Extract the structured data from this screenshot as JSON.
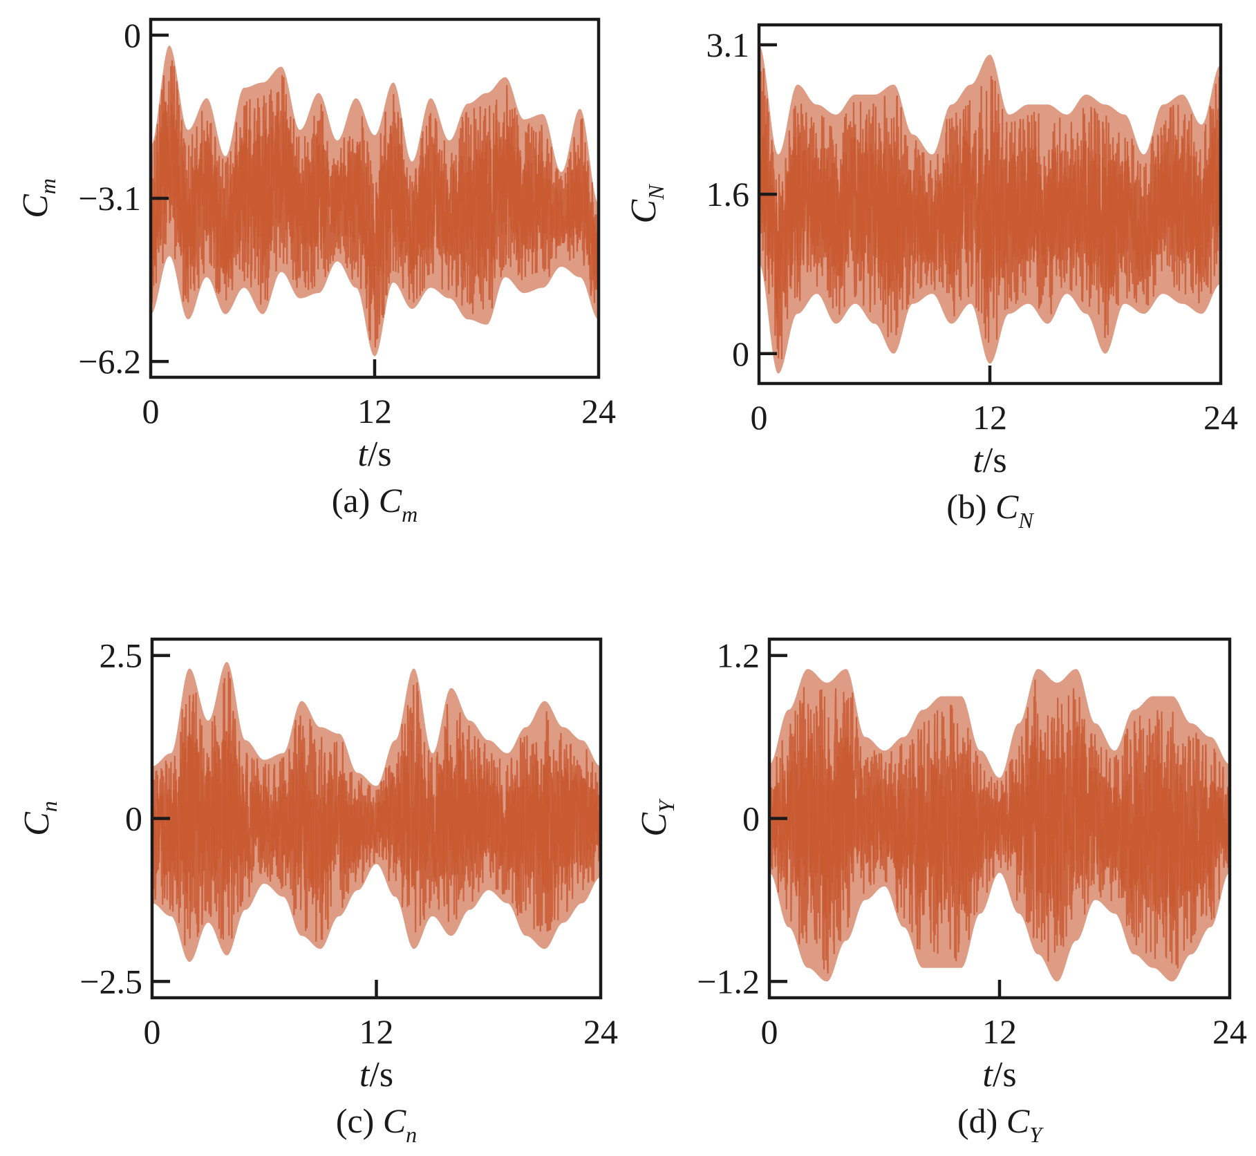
{
  "chart_data": [
    {
      "type": "line",
      "caption": {
        "label": "(a)",
        "symbol": "C",
        "subscript": "m"
      },
      "xlabel": {
        "var": "t",
        "unit": "/s"
      },
      "ylabel": {
        "symbol": "C",
        "subscript": "m"
      },
      "xlim": [
        0,
        24
      ],
      "ylim": [
        -6.5,
        0.3
      ],
      "xticks": [
        0,
        12,
        24
      ],
      "xtick_labels": [
        "0",
        "12",
        "24"
      ],
      "yticks": [
        0,
        -3.1,
        -6.2
      ],
      "ytick_labels": [
        "0",
        "−3.1",
        "−6.2"
      ],
      "grid": false,
      "series": [
        {
          "color": "#c95a32",
          "x": [
            0,
            1,
            2,
            3,
            4,
            5,
            6,
            7,
            8,
            9,
            10,
            11,
            12,
            13,
            14,
            15,
            16,
            17,
            18,
            19,
            20,
            21,
            22,
            23,
            24
          ],
          "y_upper": [
            -2.1,
            -0.2,
            -1.8,
            -1.2,
            -2.3,
            -1.0,
            -0.9,
            -0.6,
            -1.8,
            -1.1,
            -2.0,
            -1.2,
            -1.9,
            -0.9,
            -2.4,
            -1.2,
            -2.0,
            -1.3,
            -1.1,
            -0.8,
            -1.6,
            -1.5,
            -2.6,
            -1.4,
            -3.2
          ],
          "y_lower": [
            -5.3,
            -4.2,
            -5.4,
            -4.6,
            -5.3,
            -4.8,
            -5.3,
            -4.5,
            -5.0,
            -4.9,
            -4.3,
            -4.8,
            -6.1,
            -4.7,
            -5.2,
            -4.8,
            -5.0,
            -5.4,
            -5.5,
            -4.6,
            -4.9,
            -4.8,
            -4.4,
            -4.6,
            -5.4
          ]
        }
      ]
    },
    {
      "type": "line",
      "caption": {
        "label": "(b)",
        "symbol": "C",
        "subscript": "N"
      },
      "xlabel": {
        "var": "t",
        "unit": "/s"
      },
      "ylabel": {
        "symbol": "C",
        "subscript": "N"
      },
      "xlim": [
        0,
        24
      ],
      "ylim": [
        -0.3,
        3.3
      ],
      "xticks": [
        0,
        12,
        24
      ],
      "xtick_labels": [
        "0",
        "12",
        "24"
      ],
      "yticks": [
        3.1,
        1.6,
        0
      ],
      "ytick_labels": [
        "3.1",
        "1.6",
        "0"
      ],
      "grid": false,
      "series": [
        {
          "color": "#c95a32",
          "x": [
            0,
            1,
            2,
            3,
            4,
            5,
            6,
            7,
            8,
            9,
            10,
            11,
            12,
            13,
            14,
            15,
            16,
            17,
            18,
            19,
            20,
            21,
            22,
            23,
            24
          ],
          "y_upper": [
            3.1,
            2.0,
            2.7,
            2.5,
            2.4,
            2.6,
            2.6,
            2.7,
            2.2,
            2.0,
            2.5,
            2.7,
            3.0,
            2.4,
            2.5,
            2.5,
            2.4,
            2.6,
            2.5,
            2.4,
            2.0,
            2.5,
            2.6,
            2.3,
            2.9
          ],
          "y_lower": [
            0.9,
            -0.2,
            0.4,
            0.6,
            0.3,
            0.5,
            0.3,
            0.0,
            0.5,
            0.6,
            0.3,
            0.5,
            -0.1,
            0.4,
            0.5,
            0.3,
            0.6,
            0.4,
            0.0,
            0.5,
            0.4,
            0.6,
            0.5,
            0.4,
            0.7
          ]
        }
      ]
    },
    {
      "type": "line",
      "caption": {
        "label": "(c)",
        "symbol": "C",
        "subscript": "n"
      },
      "xlabel": {
        "var": "t",
        "unit": "/s"
      },
      "ylabel": {
        "symbol": "C",
        "subscript": "n"
      },
      "xlim": [
        0,
        24
      ],
      "ylim": [
        -2.75,
        2.75
      ],
      "xticks": [
        0,
        12,
        24
      ],
      "xtick_labels": [
        "0",
        "12",
        "24"
      ],
      "yticks": [
        2.5,
        0,
        -2.5
      ],
      "ytick_labels": [
        "2.5",
        "0",
        "−2.5"
      ],
      "grid": false,
      "series": [
        {
          "color": "#c95a32",
          "x": [
            0,
            1,
            2,
            3,
            4,
            5,
            6,
            7,
            8,
            9,
            10,
            11,
            12,
            13,
            14,
            15,
            16,
            17,
            18,
            19,
            20,
            21,
            22,
            23,
            24
          ],
          "y_upper": [
            0.8,
            1.0,
            2.3,
            1.5,
            2.4,
            1.2,
            0.9,
            1.0,
            1.8,
            1.4,
            1.3,
            0.7,
            0.5,
            1.2,
            2.3,
            1.0,
            2.0,
            1.5,
            1.2,
            1.0,
            1.4,
            1.8,
            1.4,
            1.2,
            0.8
          ],
          "y_lower": [
            -1.3,
            -1.5,
            -2.2,
            -1.6,
            -2.1,
            -1.4,
            -1.0,
            -1.2,
            -1.8,
            -2.0,
            -1.5,
            -1.1,
            -0.7,
            -1.2,
            -2.0,
            -1.5,
            -1.8,
            -1.4,
            -1.1,
            -1.3,
            -1.8,
            -2.0,
            -1.6,
            -1.3,
            -0.9
          ]
        }
      ]
    },
    {
      "type": "line",
      "caption": {
        "label": "(d)",
        "symbol": "C",
        "subscript": "Y"
      },
      "xlabel": {
        "var": "t",
        "unit": "/s"
      },
      "ylabel": {
        "symbol": "C",
        "subscript": "Y"
      },
      "xlim": [
        0,
        24
      ],
      "ylim": [
        -1.32,
        1.32
      ],
      "xticks": [
        0,
        12,
        24
      ],
      "xtick_labels": [
        "0",
        "12",
        "24"
      ],
      "yticks": [
        1.2,
        0,
        -1.2
      ],
      "ytick_labels": [
        "1.2",
        "0",
        "−1.2"
      ],
      "grid": false,
      "series": [
        {
          "color": "#c95a32",
          "x": [
            0,
            1,
            2,
            3,
            4,
            5,
            6,
            7,
            8,
            9,
            10,
            11,
            12,
            13,
            14,
            15,
            16,
            17,
            18,
            19,
            20,
            21,
            22,
            23,
            24
          ],
          "y_upper": [
            0.4,
            0.8,
            1.1,
            1.0,
            1.1,
            0.6,
            0.5,
            0.6,
            0.8,
            0.9,
            0.9,
            0.5,
            0.3,
            0.7,
            1.1,
            1.0,
            1.1,
            0.7,
            0.5,
            0.8,
            0.9,
            0.9,
            0.7,
            0.6,
            0.4
          ],
          "y_lower": [
            -0.4,
            -0.8,
            -1.1,
            -1.2,
            -0.9,
            -0.6,
            -0.5,
            -0.8,
            -1.1,
            -1.1,
            -1.1,
            -0.7,
            -0.4,
            -0.7,
            -1.0,
            -1.2,
            -0.9,
            -0.6,
            -0.7,
            -1.0,
            -1.1,
            -1.2,
            -1.0,
            -0.8,
            -0.4
          ]
        }
      ]
    }
  ]
}
